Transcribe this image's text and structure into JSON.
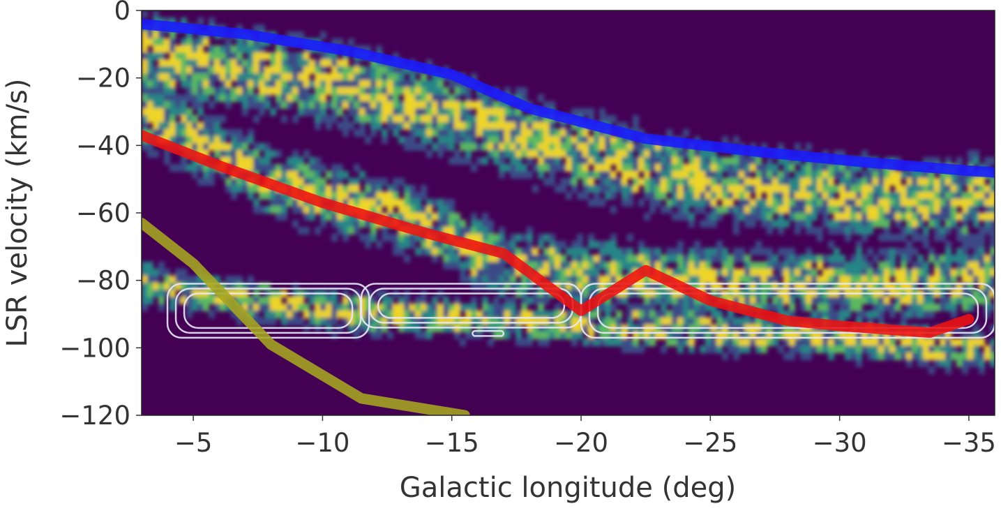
{
  "chart_data": {
    "type": "heatmap",
    "title": "",
    "xlabel": "Galactic longitude (deg)",
    "ylabel": "LSR velocity (km/s)",
    "xlim": [
      -3,
      -36
    ],
    "ylim": [
      -120,
      0
    ],
    "x_ticks": [
      -5,
      -10,
      -15,
      -20,
      -25,
      -30,
      -35
    ],
    "x_tick_labels": [
      "−5",
      "−10",
      "−15",
      "−20",
      "−25",
      "−30",
      "−35"
    ],
    "y_ticks": [
      0,
      -20,
      -40,
      -60,
      -80,
      -100,
      -120
    ],
    "y_tick_labels": [
      "0",
      "−20",
      "−40",
      "−60",
      "−80",
      "−100",
      "−120"
    ],
    "colormap": [
      "#440154",
      "#3b528b",
      "#21918c",
      "#5ec962",
      "#fde725"
    ],
    "background_color": "#440154",
    "emission_ridges": [
      {
        "x": [
          -3,
          -10,
          -15,
          -20,
          -25,
          -30,
          -36
        ],
        "y": [
          -12,
          -20,
          -30,
          -42,
          -50,
          -54,
          -55
        ],
        "spread": 12
      },
      {
        "x": [
          -3,
          -8,
          -13,
          -17,
          -22,
          -27,
          -33,
          -36
        ],
        "y": [
          -30,
          -50,
          -60,
          -75,
          -78,
          -80,
          -80,
          -78
        ],
        "spread": 10
      },
      {
        "x": [
          -3,
          -10,
          -20,
          -30,
          -36
        ],
        "y": [
          -80,
          -88,
          -92,
          -96,
          -100
        ],
        "spread": 6
      }
    ],
    "series": [
      {
        "color": "#1a1aff",
        "x": [
          -3,
          -7,
          -11,
          -15,
          -18,
          -22.5,
          -27,
          -31,
          -35,
          -36
        ],
        "y": [
          -4,
          -7,
          -12,
          -19,
          -29,
          -38,
          -42,
          -45,
          -47.5,
          -48
        ]
      },
      {
        "color": "#ee1111",
        "x": [
          -3,
          -6,
          -10,
          -14,
          -17,
          -20,
          -22.5,
          -25,
          -28,
          -30,
          -33.5,
          -35
        ],
        "y": [
          -37,
          -46,
          -57,
          -66,
          -72,
          -89,
          -77,
          -86,
          -92,
          -93.5,
          -95.5,
          -91.5
        ]
      },
      {
        "color": "#a6a620",
        "x": [
          -3,
          -5,
          -8,
          -11.5,
          -15.5
        ],
        "y": [
          -63,
          -75,
          -99,
          -115,
          -120
        ]
      }
    ],
    "contours": [
      {
        "color": "#e8e8f8",
        "level_count": 3,
        "regions": [
          {
            "x": [
              -4,
              -11.8
            ],
            "y": [
              -81,
              -97
            ]
          },
          {
            "x": [
              -11.5,
              -20
            ],
            "y": [
              -81,
              -94
            ]
          },
          {
            "x": [
              -20,
              -36
            ],
            "y": [
              -81,
              -97
            ]
          },
          {
            "x": [
              -15.8,
              -17
            ],
            "y": [
              -95,
              -96.5
            ]
          }
        ]
      }
    ]
  }
}
